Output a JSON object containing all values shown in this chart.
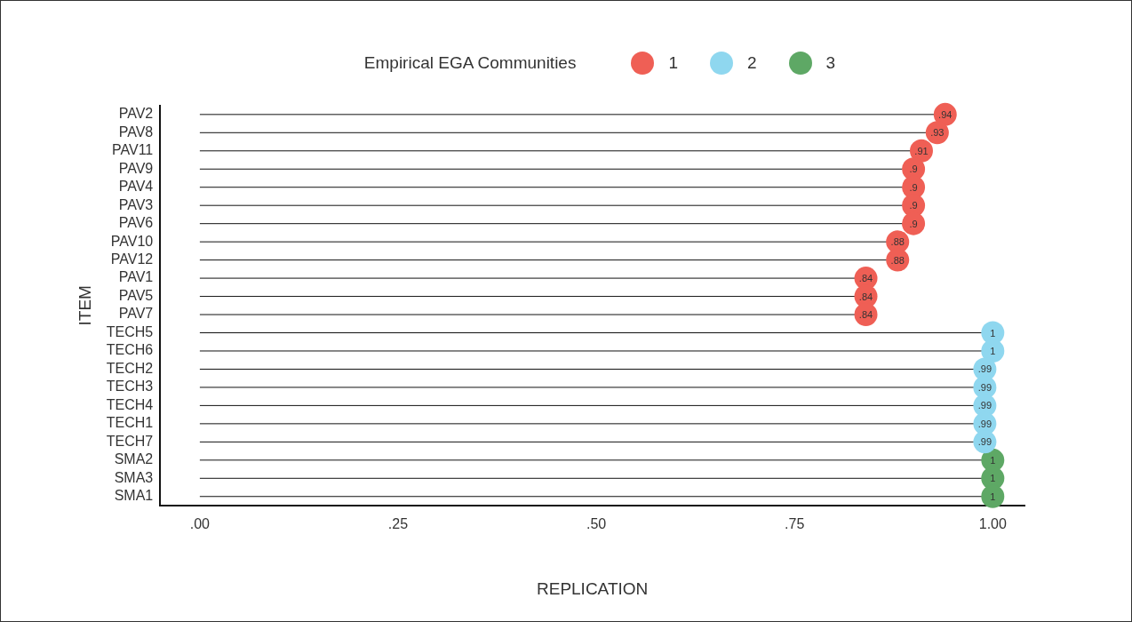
{
  "chart_data": {
    "type": "lollipop",
    "orientation": "horizontal",
    "xlabel": "REPLICATION",
    "ylabel": "ITEM",
    "legend_title": "Empirical EGA Communities",
    "legend": "top",
    "marker": "circle",
    "grid": false,
    "categories": [
      "PAV2",
      "PAV8",
      "PAV11",
      "PAV9",
      "PAV4",
      "PAV3",
      "PAV6",
      "PAV10",
      "PAV12",
      "PAV1",
      "PAV5",
      "PAV7",
      "TECH5",
      "TECH6",
      "TECH2",
      "TECH3",
      "TECH4",
      "TECH1",
      "TECH7",
      "SMA2",
      "SMA3",
      "SMA1"
    ],
    "xlim": [
      -0.05,
      1.04
    ],
    "xticks": [
      {
        "value": 0,
        "label": ".00"
      },
      {
        "value": 0.25,
        "label": ".25"
      },
      {
        "value": 0.5,
        "label": ".50"
      },
      {
        "value": 0.75,
        "label": ".75"
      },
      {
        "value": 1,
        "label": "1.00"
      }
    ],
    "series": [
      {
        "name": "1",
        "color": "#ef5f55",
        "values": [
          0.94,
          0.93,
          0.91,
          0.9,
          0.9,
          0.9,
          0.9,
          0.88,
          0.88,
          0.84,
          0.84,
          0.84,
          null,
          null,
          null,
          null,
          null,
          null,
          null,
          null,
          null,
          null
        ],
        "value_labels": [
          ".94",
          ".93",
          ".91",
          ".9",
          ".9",
          ".9",
          ".9",
          ".88",
          ".88",
          ".84",
          ".84",
          ".84",
          null,
          null,
          null,
          null,
          null,
          null,
          null,
          null,
          null,
          null
        ]
      },
      {
        "name": "2",
        "color": "#8fd7ef",
        "values": [
          null,
          null,
          null,
          null,
          null,
          null,
          null,
          null,
          null,
          null,
          null,
          null,
          1,
          1,
          0.99,
          0.99,
          0.99,
          0.99,
          0.99,
          null,
          null,
          null
        ],
        "value_labels": [
          null,
          null,
          null,
          null,
          null,
          null,
          null,
          null,
          null,
          null,
          null,
          null,
          "1",
          "1",
          ".99",
          ".99",
          ".99",
          ".99",
          ".99",
          null,
          null,
          null
        ]
      },
      {
        "name": "3",
        "color": "#5ea865",
        "values": [
          null,
          null,
          null,
          null,
          null,
          null,
          null,
          null,
          null,
          null,
          null,
          null,
          null,
          null,
          null,
          null,
          null,
          null,
          null,
          1,
          1,
          1
        ],
        "value_labels": [
          null,
          null,
          null,
          null,
          null,
          null,
          null,
          null,
          null,
          null,
          null,
          null,
          null,
          null,
          null,
          null,
          null,
          null,
          null,
          "1",
          "1",
          "1"
        ]
      }
    ]
  }
}
